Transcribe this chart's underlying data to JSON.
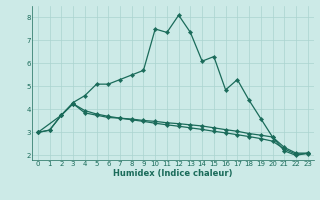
{
  "xlabel": "Humidex (Indice chaleur)",
  "bg_color": "#cceae7",
  "grid_color": "#aad4d0",
  "line_color": "#1a6b5a",
  "xlim": [
    -0.5,
    23.5
  ],
  "ylim": [
    1.8,
    8.5
  ],
  "yticks": [
    2,
    3,
    4,
    5,
    6,
    7,
    8
  ],
  "xticks": [
    0,
    1,
    2,
    3,
    4,
    5,
    6,
    7,
    8,
    9,
    10,
    11,
    12,
    13,
    14,
    15,
    16,
    17,
    18,
    19,
    20,
    21,
    22,
    23
  ],
  "line1_x": [
    0,
    1,
    2,
    3,
    4,
    5,
    6,
    7,
    8,
    9,
    10,
    11,
    12,
    13,
    14,
    15,
    16,
    17,
    18,
    19,
    20,
    21,
    22,
    23
  ],
  "line1_y": [
    3.0,
    3.1,
    3.75,
    4.3,
    4.6,
    5.1,
    5.1,
    5.3,
    5.5,
    5.7,
    7.5,
    7.35,
    8.1,
    7.35,
    6.1,
    6.3,
    4.85,
    5.3,
    4.4,
    3.6,
    2.8,
    2.2,
    2.0,
    2.1
  ],
  "line2_x": [
    0,
    1,
    2,
    3,
    4,
    5,
    6,
    7,
    8,
    9,
    10,
    11,
    12,
    13,
    14,
    15,
    16,
    17,
    18,
    19,
    20,
    21,
    22,
    23
  ],
  "line2_y": [
    3.0,
    3.1,
    3.75,
    4.25,
    3.85,
    3.75,
    3.65,
    3.62,
    3.58,
    3.52,
    3.48,
    3.42,
    3.38,
    3.33,
    3.28,
    3.2,
    3.12,
    3.05,
    2.95,
    2.88,
    2.8,
    2.35,
    2.1,
    2.1
  ],
  "line3_x": [
    0,
    2,
    3,
    4,
    5,
    6,
    7,
    8,
    9,
    10,
    11,
    12,
    13,
    14,
    15,
    16,
    17,
    18,
    19,
    20,
    21,
    22,
    23
  ],
  "line3_y": [
    3.0,
    3.75,
    4.25,
    3.95,
    3.8,
    3.7,
    3.62,
    3.55,
    3.48,
    3.4,
    3.33,
    3.27,
    3.2,
    3.13,
    3.05,
    2.98,
    2.9,
    2.82,
    2.73,
    2.62,
    2.28,
    2.05,
    2.08
  ]
}
